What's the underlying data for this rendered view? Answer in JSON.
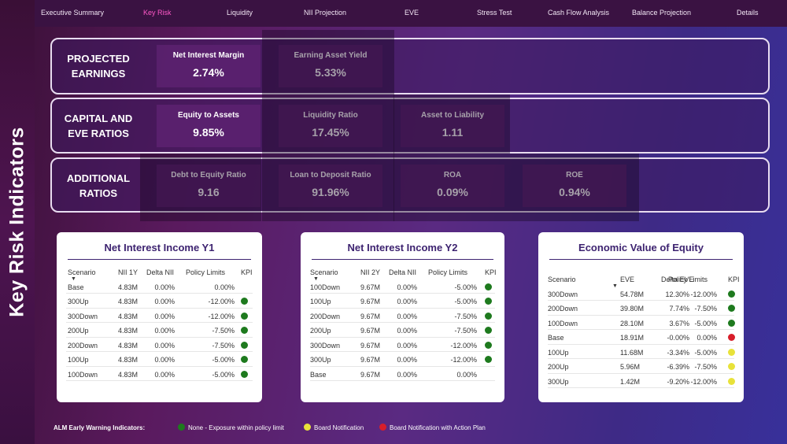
{
  "side_title": "Key Risk Indicators",
  "nav": {
    "items": [
      {
        "label": "Executive Summary",
        "active": false
      },
      {
        "label": "Key Risk",
        "active": true
      },
      {
        "label": "Liquidity",
        "active": false
      },
      {
        "label": "NII Projection",
        "active": false
      },
      {
        "label": "EVE",
        "active": false
      },
      {
        "label": "Stress Test",
        "active": false
      },
      {
        "label": "Cash Flow Analysis",
        "active": false
      },
      {
        "label": "Balance Projection",
        "active": false
      },
      {
        "label": "Details",
        "active": false
      }
    ]
  },
  "rows": [
    {
      "label1": "PROJECTED",
      "label2": "EARNINGS",
      "kpis": [
        {
          "title": "Net Interest Margin",
          "value": "2.74%"
        },
        {
          "title": "Earning Asset Yield",
          "value": "5.33%"
        }
      ]
    },
    {
      "label1": "CAPITAL AND",
      "label2": "EVE RATIOS",
      "kpis": [
        {
          "title": "Equity to Assets",
          "value": "9.85%"
        },
        {
          "title": "Liquidity Ratio",
          "value": "17.45%"
        },
        {
          "title": "Asset to Liability",
          "value": "1.11"
        }
      ]
    },
    {
      "label1": "ADDITIONAL",
      "label2": "RATIOS",
      "kpis": [
        {
          "title": "Debt to Equity Ratio",
          "value": "9.16"
        },
        {
          "title": "Loan to Deposit Ratio",
          "value": "91.96%"
        },
        {
          "title": "ROA",
          "value": "0.09%"
        },
        {
          "title": "ROE",
          "value": "0.94%"
        }
      ]
    }
  ],
  "colors": {
    "green": "#1e7a1e",
    "yellow": "#e8e23a",
    "red": "#d81e2a"
  },
  "panels": {
    "nii_y1": {
      "title": "Net Interest Income Y1",
      "headers": [
        "Scenario",
        "NII 1Y",
        "Delta NII",
        "Policy Limits",
        "KPI"
      ],
      "rows": [
        {
          "scenario": "Base",
          "value": "4.83M",
          "delta": "0.00%",
          "limit": "0.00%",
          "kpi": ""
        },
        {
          "scenario": "300Up",
          "value": "4.83M",
          "delta": "0.00%",
          "limit": "-12.00%",
          "kpi": "green"
        },
        {
          "scenario": "300Down",
          "value": "4.83M",
          "delta": "0.00%",
          "limit": "-12.00%",
          "kpi": "green"
        },
        {
          "scenario": "200Up",
          "value": "4.83M",
          "delta": "0.00%",
          "limit": "-7.50%",
          "kpi": "green"
        },
        {
          "scenario": "200Down",
          "value": "4.83M",
          "delta": "0.00%",
          "limit": "-7.50%",
          "kpi": "green"
        },
        {
          "scenario": "100Up",
          "value": "4.83M",
          "delta": "0.00%",
          "limit": "-5.00%",
          "kpi": "green"
        },
        {
          "scenario": "100Down",
          "value": "4.83M",
          "delta": "0.00%",
          "limit": "-5.00%",
          "kpi": "green"
        }
      ]
    },
    "nii_y2": {
      "title": "Net Interest Income Y2",
      "headers": [
        "Scenario",
        "NII 2Y",
        "Delta NII",
        "Policy Limits",
        "KPI"
      ],
      "rows": [
        {
          "scenario": "100Down",
          "value": "9.67M",
          "delta": "0.00%",
          "limit": "-5.00%",
          "kpi": "green"
        },
        {
          "scenario": "100Up",
          "value": "9.67M",
          "delta": "0.00%",
          "limit": "-5.00%",
          "kpi": "green"
        },
        {
          "scenario": "200Down",
          "value": "9.67M",
          "delta": "0.00%",
          "limit": "-7.50%",
          "kpi": "green"
        },
        {
          "scenario": "200Up",
          "value": "9.67M",
          "delta": "0.00%",
          "limit": "-7.50%",
          "kpi": "green"
        },
        {
          "scenario": "300Down",
          "value": "9.67M",
          "delta": "0.00%",
          "limit": "-12.00%",
          "kpi": "green"
        },
        {
          "scenario": "300Up",
          "value": "9.67M",
          "delta": "0.00%",
          "limit": "-12.00%",
          "kpi": "green"
        },
        {
          "scenario": "Base",
          "value": "9.67M",
          "delta": "0.00%",
          "limit": "0.00%",
          "kpi": ""
        }
      ]
    },
    "eve": {
      "title": "Economic Value of Equity",
      "headers": [
        "Scenario",
        "EVE",
        "Delta EVE",
        "Policy Limits",
        "KPI"
      ],
      "rows": [
        {
          "scenario": "300Down",
          "value": "54.78M",
          "delta": "12.30%",
          "limit": "-12.00%",
          "kpi": "green"
        },
        {
          "scenario": "200Down",
          "value": "39.80M",
          "delta": "7.74%",
          "limit": "-7.50%",
          "kpi": "green"
        },
        {
          "scenario": "100Down",
          "value": "28.10M",
          "delta": "3.67%",
          "limit": "-5.00%",
          "kpi": "green"
        },
        {
          "scenario": "Base",
          "value": "18.91M",
          "delta": "-0.00%",
          "limit": "0.00%",
          "kpi": "red"
        },
        {
          "scenario": "100Up",
          "value": "11.68M",
          "delta": "-3.34%",
          "limit": "-5.00%",
          "kpi": "yellow"
        },
        {
          "scenario": "200Up",
          "value": "5.96M",
          "delta": "-6.39%",
          "limit": "-7.50%",
          "kpi": "yellow"
        },
        {
          "scenario": "300Up",
          "value": "1.42M",
          "delta": "-9.20%",
          "limit": "-12.00%",
          "kpi": "yellow"
        }
      ]
    }
  },
  "legend": {
    "title": "ALM Early Warning Indicators:",
    "items": [
      {
        "color": "green",
        "label": "None - Exposure within policy limit"
      },
      {
        "color": "yellow",
        "label": "Board Notification"
      },
      {
        "color": "red",
        "label": "Board Notification with Action Plan"
      }
    ]
  }
}
